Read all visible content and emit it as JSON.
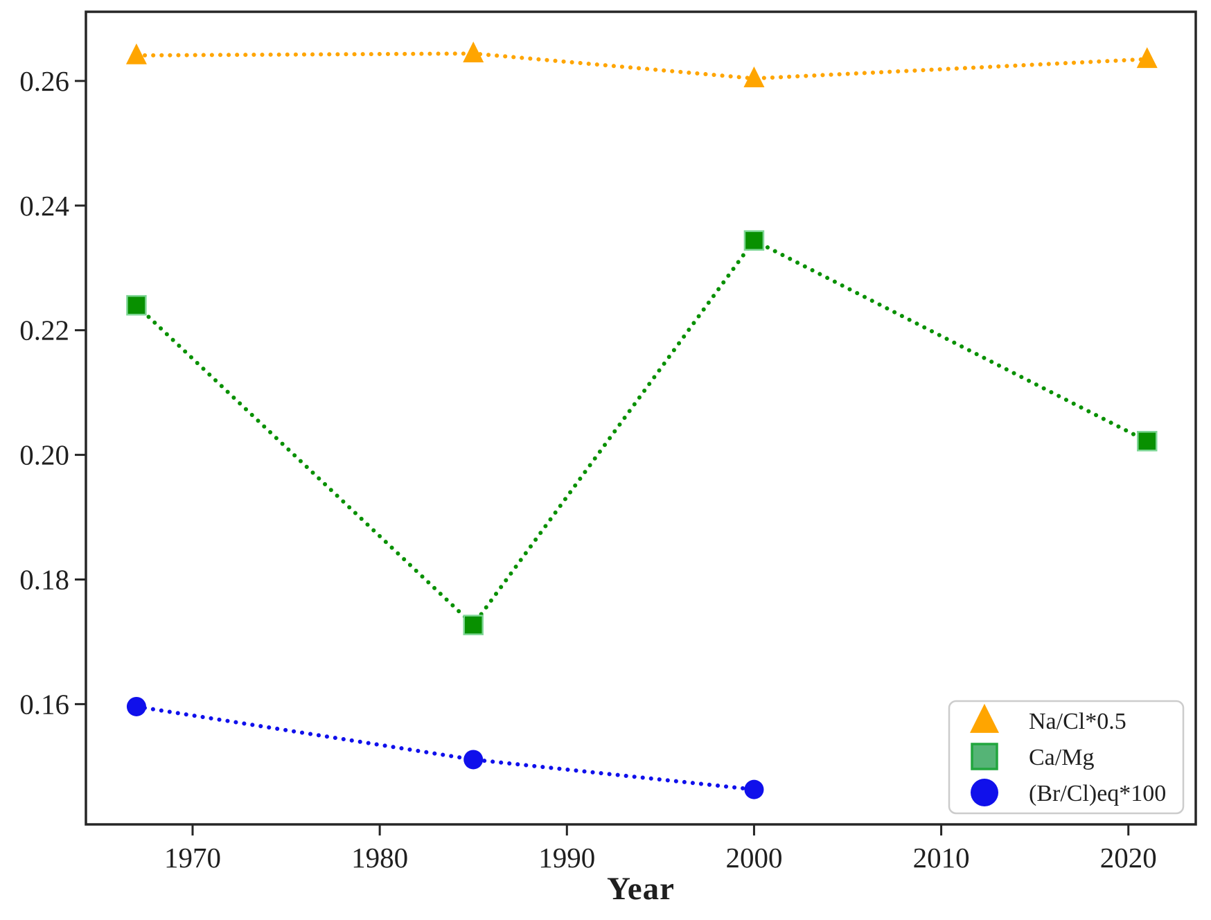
{
  "chart_data": {
    "type": "line",
    "title": "",
    "xlabel": "Year",
    "ylabel": "",
    "xlim": [
      1964.3,
      2023.6
    ],
    "ylim": [
      0.1407,
      0.2711
    ],
    "x_ticks": [
      1970,
      1980,
      1990,
      2000,
      2010,
      2020
    ],
    "y_ticks": [
      0.16,
      0.18,
      0.2,
      0.22,
      0.24,
      0.26
    ],
    "grid": false,
    "line_style": "dotted",
    "axis_color": "#262626",
    "text_color": "#1f1f1f",
    "legend": {
      "position": "lower-right",
      "border_color": "#cccccc",
      "background": "#ffffff"
    },
    "series": [
      {
        "name": "Na/Cl*0.5",
        "marker": "triangle",
        "color": "#FFA500",
        "x": [
          1967,
          1985,
          2000,
          2021
        ],
        "y": [
          0.2641,
          0.2644,
          0.2604,
          0.2635
        ]
      },
      {
        "name": "Ca/Mg",
        "marker": "square",
        "color": "#089000",
        "marker_edge": "#7ed695",
        "legend_face": "#55B476",
        "legend_edge": "#22A63E",
        "x": [
          1967,
          1985,
          2000,
          2021
        ],
        "y": [
          0.224,
          0.1727,
          0.2344,
          0.2022
        ]
      },
      {
        "name": "(Br/Cl)eq*100",
        "marker": "circle",
        "color": "#1010EB",
        "x": [
          1967,
          1985,
          2000
        ],
        "y": [
          0.1596,
          0.1511,
          0.1463
        ]
      }
    ]
  }
}
